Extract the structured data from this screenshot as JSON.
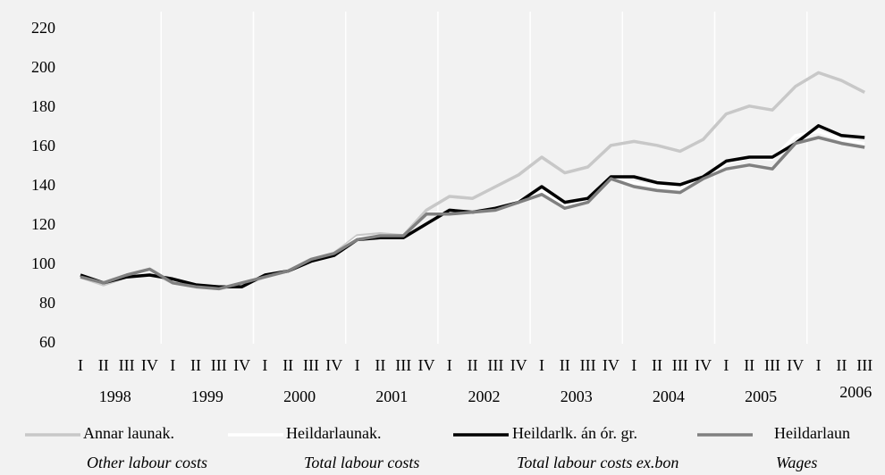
{
  "chart_data": {
    "type": "line",
    "categories": [
      "I",
      "II",
      "III",
      "IV",
      "I",
      "II",
      "III",
      "IV",
      "I",
      "II",
      "III",
      "IV",
      "I",
      "II",
      "III",
      "IV",
      "I",
      "II",
      "III",
      "IV",
      "I",
      "II",
      "III",
      "IV",
      "I",
      "II",
      "III",
      "IV",
      "I",
      "II",
      "III",
      "IV",
      "I",
      "II",
      "III"
    ],
    "years": [
      "1998",
      "1999",
      "2000",
      "2001",
      "2002",
      "2003",
      "2004",
      "2005",
      "2006"
    ],
    "ylim": [
      60,
      220
    ],
    "yticks": [
      60,
      80,
      100,
      120,
      140,
      160,
      180,
      200,
      220
    ],
    "series": [
      {
        "name": "Annar launak.",
        "subtitle": "Other labour costs",
        "color": "#c8c8c8",
        "values": [
          94,
          90,
          94,
          97,
          91,
          89,
          88,
          90,
          94,
          97,
          103,
          106,
          115,
          116,
          115,
          128,
          135,
          134,
          140,
          146,
          155,
          147,
          150,
          161,
          163,
          161,
          158,
          164,
          177,
          181,
          179,
          191,
          198,
          194,
          188
        ]
      },
      {
        "name": "Heildarlaunak.",
        "subtitle": "Total labour costs",
        "color": "#ffffff",
        "values": [
          94,
          91,
          94,
          97,
          92,
          89,
          88,
          91,
          94,
          97,
          103,
          105,
          114,
          115,
          115,
          126,
          127,
          127,
          129,
          133,
          138,
          130,
          133,
          144,
          142,
          140,
          139,
          144,
          152,
          155,
          154,
          166,
          168,
          164,
          162
        ]
      },
      {
        "name": "Heildarlk. án ór. gr.",
        "subtitle": "Total labour costs ex.bon",
        "color": "#000000",
        "values": [
          95,
          91,
          94,
          95,
          93,
          90,
          89,
          89,
          95,
          97,
          102,
          105,
          113,
          114,
          114,
          121,
          128,
          127,
          129,
          132,
          140,
          132,
          134,
          145,
          145,
          142,
          141,
          145,
          153,
          155,
          155,
          162,
          171,
          166,
          165
        ]
      },
      {
        "name": "Heildarlaun",
        "subtitle": "Wages",
        "color": "#808080",
        "values": [
          94,
          91,
          95,
          98,
          91,
          89,
          88,
          91,
          94,
          97,
          103,
          106,
          113,
          115,
          115,
          126,
          126,
          127,
          128,
          132,
          136,
          129,
          132,
          144,
          140,
          138,
          137,
          144,
          149,
          151,
          149,
          162,
          165,
          162,
          160
        ]
      }
    ]
  }
}
